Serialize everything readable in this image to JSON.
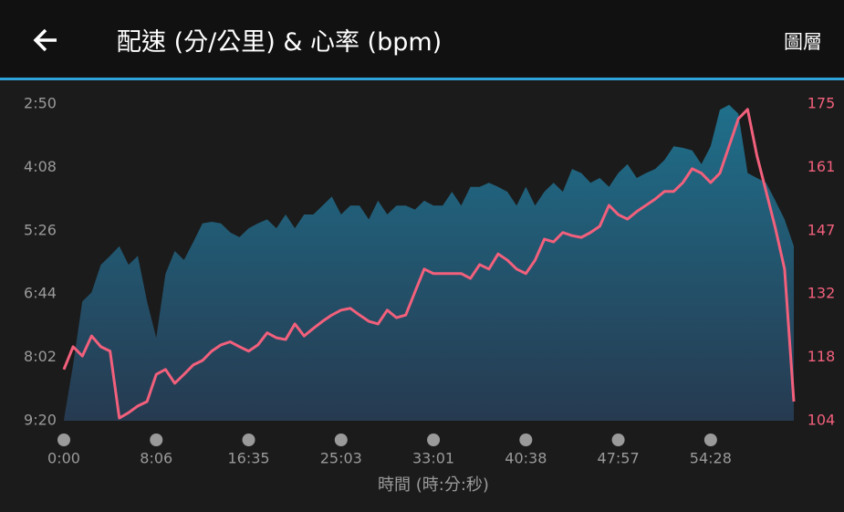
{
  "header": {
    "title": "配速 (分/公里) & 心率 (bpm)",
    "action": "圖層"
  },
  "chart_data": {
    "type": "combo",
    "x_label": "時間 (時:分:秒)",
    "categories": [
      "0:00",
      null,
      null,
      null,
      null,
      null,
      null,
      null,
      null,
      null,
      "8:06",
      null,
      null,
      null,
      null,
      null,
      null,
      null,
      null,
      null,
      "16:35",
      null,
      null,
      null,
      null,
      null,
      null,
      null,
      null,
      null,
      "25:03",
      null,
      null,
      null,
      null,
      null,
      null,
      null,
      null,
      null,
      "33:01",
      null,
      null,
      null,
      null,
      null,
      null,
      null,
      null,
      null,
      "40:38",
      null,
      null,
      null,
      null,
      null,
      null,
      null,
      null,
      null,
      "47:57",
      null,
      null,
      null,
      null,
      null,
      null,
      null,
      null,
      null,
      "54:28",
      null,
      null,
      null,
      null,
      null,
      null,
      null,
      null,
      null
    ],
    "ylim": [
      560,
      170
    ],
    "yticks": [
      {
        "value": 170,
        "label": "2:50"
      },
      {
        "value": 248,
        "label": "4:08"
      },
      {
        "value": 326,
        "label": "5:26"
      },
      {
        "value": 404,
        "label": "6:44"
      },
      {
        "value": 482,
        "label": "8:02"
      },
      {
        "value": 560,
        "label": "9:20"
      }
    ],
    "y2lim": [
      104,
      175
    ],
    "y2ticks": [
      104,
      {
        "value": 118.2,
        "label": "118"
      },
      {
        "value": 132.4,
        "label": "132"
      },
      {
        "value": 146.6,
        "label": "147"
      },
      {
        "value": 160.8,
        "label": "161"
      },
      175
    ],
    "grid": false,
    "series": [
      {
        "type": "area",
        "color": "#1f6f8b",
        "values": [
          559,
          491,
          413,
          402,
          368,
          357,
          345,
          368,
          357,
          413,
          458,
          379,
          351,
          362,
          340,
          317,
          315,
          317,
          328,
          334,
          323,
          317,
          312,
          323,
          306,
          323,
          306,
          306,
          295,
          284,
          306,
          295,
          295,
          312,
          289,
          306,
          295,
          295,
          300,
          289,
          295,
          295,
          278,
          295,
          272,
          272,
          267,
          272,
          278,
          295,
          272,
          295,
          278,
          267,
          278,
          250,
          255,
          267,
          261,
          272,
          255,
          244,
          261,
          255,
          250,
          239,
          222,
          224,
          227,
          244,
          222,
          177,
          171,
          182,
          255,
          261,
          267,
          289,
          312,
          345
        ]
      },
      {
        "type": "line",
        "axis": "y2",
        "color": "#f2607c",
        "values": [
          115.5,
          120.6,
          118.5,
          123.0,
          120.6,
          119.6,
          104.6,
          105.8,
          107.3,
          108.3,
          114.4,
          115.5,
          112.4,
          114.4,
          116.5,
          117.5,
          119.6,
          121.0,
          121.7,
          120.6,
          119.6,
          121.0,
          123.7,
          122.6,
          122.2,
          125.7,
          123.0,
          124.7,
          126.3,
          127.7,
          128.8,
          129.2,
          127.7,
          126.3,
          125.7,
          128.8,
          127.1,
          127.7,
          132.9,
          138.0,
          137.0,
          137.0,
          137.0,
          137.0,
          135.9,
          139.0,
          138.0,
          141.4,
          140.0,
          138.0,
          137.0,
          140.0,
          144.7,
          144.1,
          146.2,
          145.5,
          145.1,
          146.2,
          147.6,
          152.3,
          150.2,
          149.2,
          150.9,
          152.3,
          153.7,
          155.4,
          155.4,
          157.4,
          160.5,
          159.5,
          157.4,
          159.5,
          165.6,
          171.7,
          173.8,
          163.5,
          155.4,
          147.2,
          138.0,
          108.3
        ]
      }
    ]
  }
}
